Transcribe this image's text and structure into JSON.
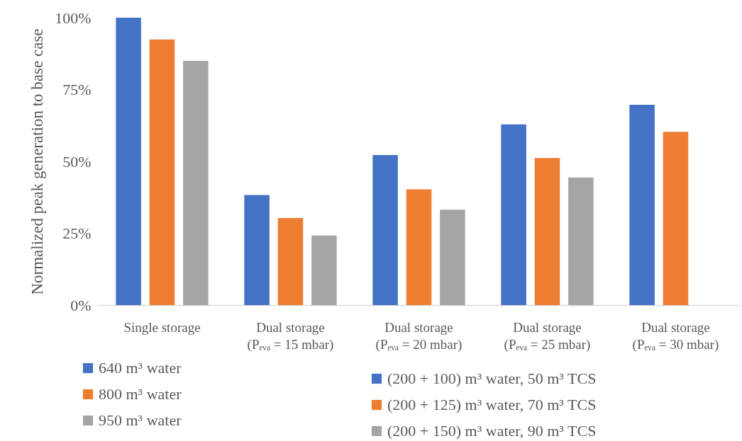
{
  "chart_data": {
    "type": "bar",
    "ylabel": "Normalized peak generation to base case",
    "categories": [
      "Single storage",
      "Dual storage\n(Pₑᵥₐ = 15 mbar)",
      "Dual storage\n(Pₑᵥₐ = 20 mbar)",
      "Dual storage\n(Pₑᵥₐ = 25 mbar)",
      "Dual storage\n(Pₑᵥₐ = 30 mbar)"
    ],
    "series": [
      {
        "name": "640 m³ water",
        "color": "#4472c4",
        "values": [
          100,
          null,
          null,
          null,
          null
        ]
      },
      {
        "name": "800 m³ water",
        "color": "#ed7d31",
        "values": [
          92.4,
          null,
          null,
          null,
          null
        ]
      },
      {
        "name": "950 m³ water",
        "color": "#a5a5a5",
        "values": [
          85,
          null,
          null,
          null,
          null
        ]
      },
      {
        "name": "(200 + 100) m³ water, 50 m³ TCS",
        "color": "#4472c4",
        "values": [
          null,
          38.3,
          52.2,
          62.9,
          69.7
        ]
      },
      {
        "name": "(200 + 125) m³ water, 70 m³ TCS",
        "color": "#ed7d31",
        "values": [
          null,
          30.3,
          40.3,
          51.2,
          60.3
        ]
      },
      {
        "name": "(200 + 150) m³ water, 90 m³ TCS",
        "color": "#a5a5a5",
        "values": [
          null,
          24.2,
          33.2,
          44.4,
          null
        ]
      }
    ],
    "ylim": [
      0,
      100
    ],
    "yticks": [
      {
        "value": 0,
        "label": "0%"
      },
      {
        "value": 25,
        "label": "25%"
      },
      {
        "value": 50,
        "label": "50%"
      },
      {
        "value": 75,
        "label": "75%"
      },
      {
        "value": 100,
        "label": "100%"
      }
    ],
    "grid": false,
    "legend": "bottom"
  }
}
